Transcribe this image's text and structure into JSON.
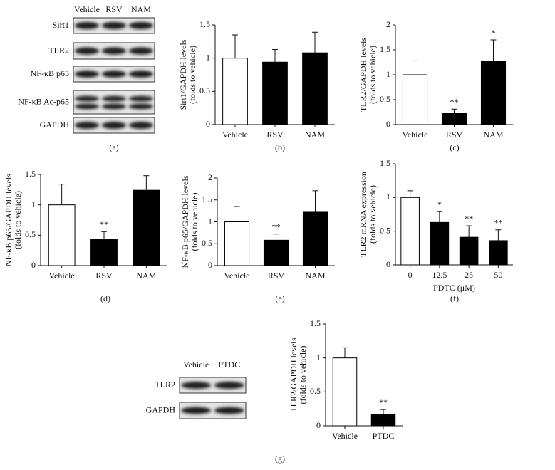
{
  "blots": [
    {
      "panel_label": "(a)",
      "lanes": [
        "Vehicle",
        "RSV",
        "NAM"
      ],
      "rows": [
        "Sirt1",
        "TLR2",
        "NF-κB p65",
        "NF-κB Ac-p65",
        "GAPDH"
      ]
    },
    {
      "lanes": [
        "Vehicle",
        "PTDC"
      ],
      "rows": [
        "TLR2",
        "GAPDH"
      ]
    }
  ],
  "chart_data": [
    {
      "type": "bar",
      "panel_label": "(b)",
      "ylabel": [
        "Sirt1/GAPDH levels",
        "(folds to vehicle)"
      ],
      "categories": [
        "Vehicle",
        "RSV",
        "NAM"
      ],
      "values": [
        1.0,
        0.94,
        1.08
      ],
      "errors": [
        0.35,
        0.19,
        0.31
      ],
      "colors": [
        "#ffffff",
        "#000000",
        "#000000"
      ],
      "ylim": [
        0,
        1.5
      ],
      "yticks": [
        0,
        0.5,
        1,
        1.5
      ]
    },
    {
      "type": "bar",
      "panel_label": "(c)",
      "ylabel": [
        "TLR2/GAPDH levels",
        "(folds to vehicle)"
      ],
      "categories": [
        "Vehicle",
        "RSV",
        "NAM"
      ],
      "values": [
        1.0,
        0.23,
        1.27
      ],
      "errors": [
        0.28,
        0.08,
        0.43
      ],
      "annotations": [
        null,
        "**",
        "*"
      ],
      "colors": [
        "#ffffff",
        "#000000",
        "#000000"
      ],
      "ylim": [
        0,
        2
      ],
      "yticks": [
        0,
        0.5,
        1,
        1.5,
        2
      ]
    },
    {
      "type": "bar",
      "panel_label": "(d)",
      "ylabel": [
        "NF-κB p65/GAPDH levels",
        "(folds to vehicle)"
      ],
      "categories": [
        "Vehicle",
        "RSV",
        "NAM"
      ],
      "values": [
        1.0,
        0.43,
        1.24
      ],
      "errors": [
        0.34,
        0.13,
        0.24
      ],
      "annotations": [
        null,
        "**",
        null
      ],
      "colors": [
        "#ffffff",
        "#000000",
        "#000000"
      ],
      "ylim": [
        0,
        1.5
      ],
      "yticks": [
        0,
        0.5,
        1,
        1.5
      ]
    },
    {
      "type": "bar",
      "panel_label": "(e)",
      "ylabel": [
        "NF-κB p65/GAPDH levels",
        "(folds to vehicle)"
      ],
      "categories": [
        "Vehicle",
        "RSV",
        "NAM"
      ],
      "values": [
        1.0,
        0.58,
        1.22
      ],
      "errors": [
        0.35,
        0.14,
        0.49
      ],
      "annotations": [
        null,
        "**",
        null
      ],
      "colors": [
        "#ffffff",
        "#000000",
        "#000000"
      ],
      "ylim": [
        0,
        2
      ],
      "yticks": [
        0,
        0.5,
        1,
        1.5,
        2
      ]
    },
    {
      "type": "bar",
      "panel_label": "(f)",
      "ylabel": [
        "TLR2 mRNA expression",
        "(folds to vehicle)"
      ],
      "xlabel": "PDTC (μM)",
      "categories": [
        "0",
        "12.5",
        "25",
        "50"
      ],
      "values": [
        1.0,
        0.63,
        0.41,
        0.36
      ],
      "errors": [
        0.1,
        0.16,
        0.17,
        0.16
      ],
      "annotations": [
        null,
        "*",
        "**",
        "**"
      ],
      "colors": [
        "#ffffff",
        "#000000",
        "#000000",
        "#000000"
      ],
      "ylim": [
        0,
        1.5
      ],
      "yticks": [
        0,
        0.5,
        1,
        1.5
      ]
    },
    {
      "type": "bar",
      "panel_label": "(g)",
      "ylabel": [
        "TLR2/GAPDH levels",
        "(folds to vehicle)"
      ],
      "categories": [
        "Vehicle",
        "PTDC"
      ],
      "values": [
        1.0,
        0.17
      ],
      "errors": [
        0.15,
        0.07
      ],
      "annotations": [
        null,
        "**"
      ],
      "colors": [
        "#ffffff",
        "#000000"
      ],
      "ylim": [
        0,
        1.5
      ],
      "yticks": [
        0,
        0.5,
        1,
        1.5
      ]
    }
  ]
}
